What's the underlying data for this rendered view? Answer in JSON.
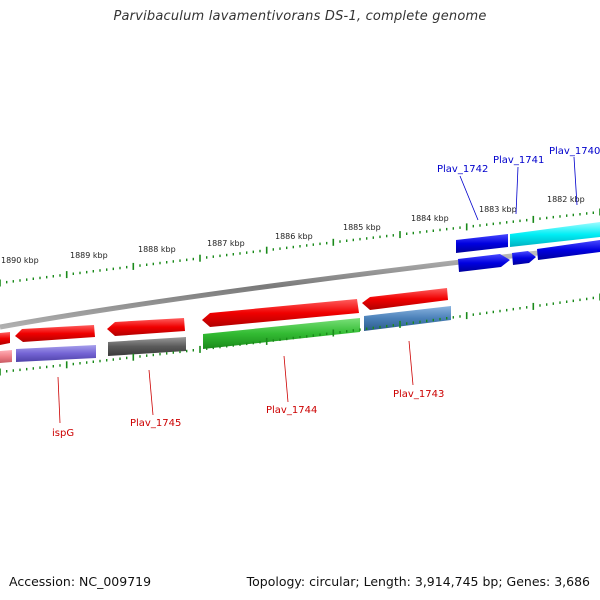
{
  "title": "Parvibaculum lavamentivorans DS-1, complete genome",
  "footer": {
    "accession": "Accession: NC_009719",
    "summary": "Topology: circular; Length: 3,914,745 bp; Genes: 3,686"
  },
  "scale": {
    "tick_labels": [
      "1882 kbp",
      "1883 kbp",
      "1884 kbp",
      "1885 kbp",
      "1886 kbp",
      "1887 kbp",
      "1888 kbp",
      "1889 kbp",
      "1890 kbp"
    ]
  },
  "gene_labels": {
    "forward": [
      "Plav_1740",
      "Plav_1741",
      "Plav_1742"
    ],
    "reverse": [
      "Plav_1743",
      "Plav_1744",
      "Plav_1745",
      "ispG"
    ]
  },
  "colors": {
    "forward_label": "#0000cc",
    "reverse_label": "#cc0000",
    "tick": "#1a8a1a",
    "backbone": "#808080"
  }
}
